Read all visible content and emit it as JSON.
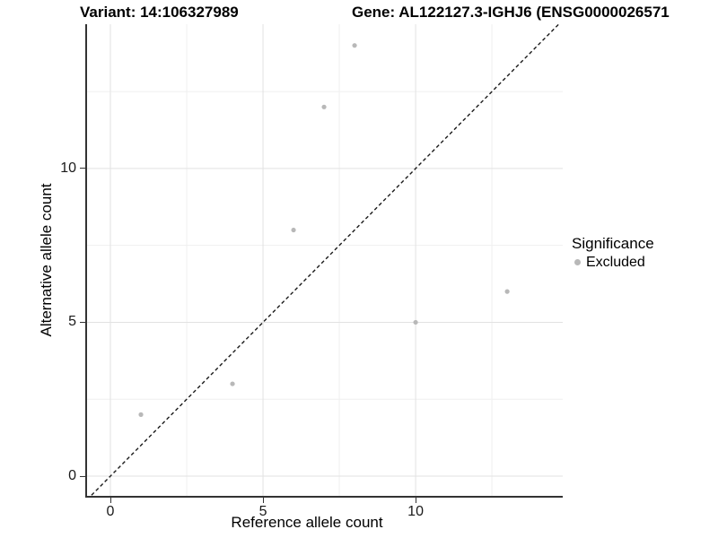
{
  "header": {
    "variant_title": "Variant: 14:106327989",
    "gene_title": "Gene: AL122127.3-IGHJ6 (ENSG0000026571"
  },
  "legend": {
    "title": "Significance",
    "items": [
      {
        "label": "Excluded",
        "color": "#b8b8b8"
      }
    ]
  },
  "chart_data": {
    "type": "scatter",
    "title": "",
    "xlabel": "Reference allele count",
    "ylabel": "Alternative allele count",
    "series": [
      {
        "name": "Excluded",
        "points": [
          {
            "x": 1,
            "y": 2
          },
          {
            "x": 4,
            "y": 3
          },
          {
            "x": 6,
            "y": 8
          },
          {
            "x": 7,
            "y": 12
          },
          {
            "x": 8,
            "y": 14
          },
          {
            "x": 10,
            "y": 5
          },
          {
            "x": 13,
            "y": 6
          }
        ]
      }
    ],
    "xlim": [
      -0.765,
      14.82
    ],
    "ylim": [
      -0.641,
      14.69
    ],
    "x_ticks": [
      0,
      5,
      10
    ],
    "y_ticks": [
      0,
      5,
      10
    ],
    "x_minor_ticks": [
      2.5,
      7.5,
      12.5
    ],
    "y_minor_ticks": [
      2.5,
      7.5,
      12.5
    ],
    "abline": {
      "slope": 1,
      "intercept": 0,
      "style": "dashed"
    },
    "grid": true,
    "legend_position": "right",
    "colors": {
      "point": "#b8b8b8",
      "abline": "#1a1a1a",
      "grid_major": "#e2e2e2",
      "grid_minor": "#efefef",
      "axis_line": "#333333"
    }
  }
}
